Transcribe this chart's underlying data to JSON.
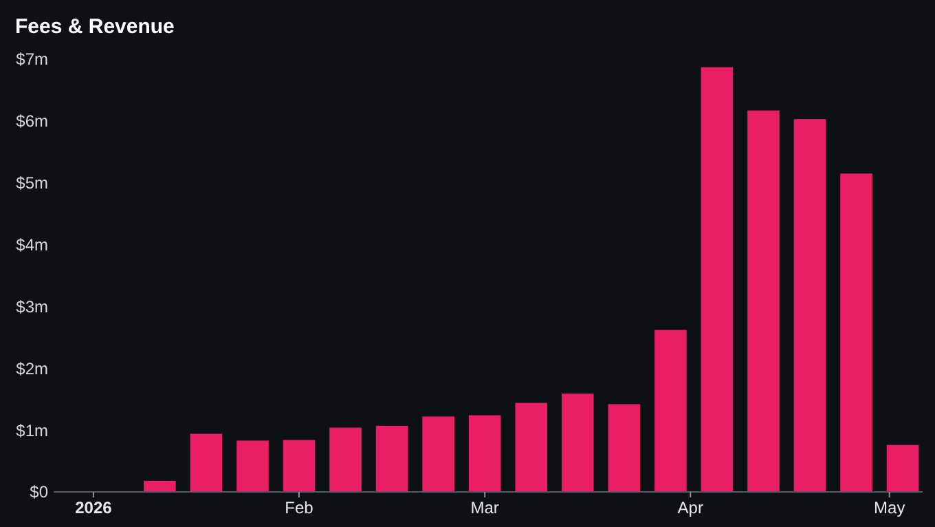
{
  "chart_data": {
    "type": "bar",
    "title": "Fees & Revenue",
    "x": [
      "2026-01-11",
      "2026-01-18",
      "2026-01-25",
      "2026-02-01",
      "2026-02-08",
      "2026-02-15",
      "2026-02-22",
      "2026-03-01",
      "2026-03-08",
      "2026-03-15",
      "2026-03-22",
      "2026-03-29",
      "2026-04-05",
      "2026-04-12",
      "2026-04-19",
      "2026-04-26",
      "2026-05-03"
    ],
    "values": [
      0.18,
      0.94,
      0.83,
      0.84,
      1.04,
      1.07,
      1.22,
      1.24,
      1.44,
      1.59,
      1.42,
      2.62,
      6.87,
      6.17,
      6.03,
      5.15,
      0.76
    ],
    "color": "#e91e63",
    "xlim": [
      "2025-12-26",
      "2026-05-06"
    ],
    "xticks": [
      {
        "value": "2026-01-01",
        "label": "2026"
      },
      {
        "value": "2026-02-01",
        "label": "Feb"
      },
      {
        "value": "2026-03-01",
        "label": "Mar"
      },
      {
        "value": "2026-04-01",
        "label": "Apr"
      },
      {
        "value": "2026-05-01",
        "label": "May"
      }
    ],
    "ylim": [
      0,
      7
    ],
    "yticks": [
      {
        "value": 0,
        "label": "$0"
      },
      {
        "value": 1,
        "label": "$1m"
      },
      {
        "value": 2,
        "label": "$2m"
      },
      {
        "value": 3,
        "label": "$3m"
      },
      {
        "value": 4,
        "label": "$4m"
      },
      {
        "value": 5,
        "label": "$5m"
      },
      {
        "value": 6,
        "label": "$6m"
      },
      {
        "value": 7,
        "label": "$7m"
      }
    ]
  }
}
